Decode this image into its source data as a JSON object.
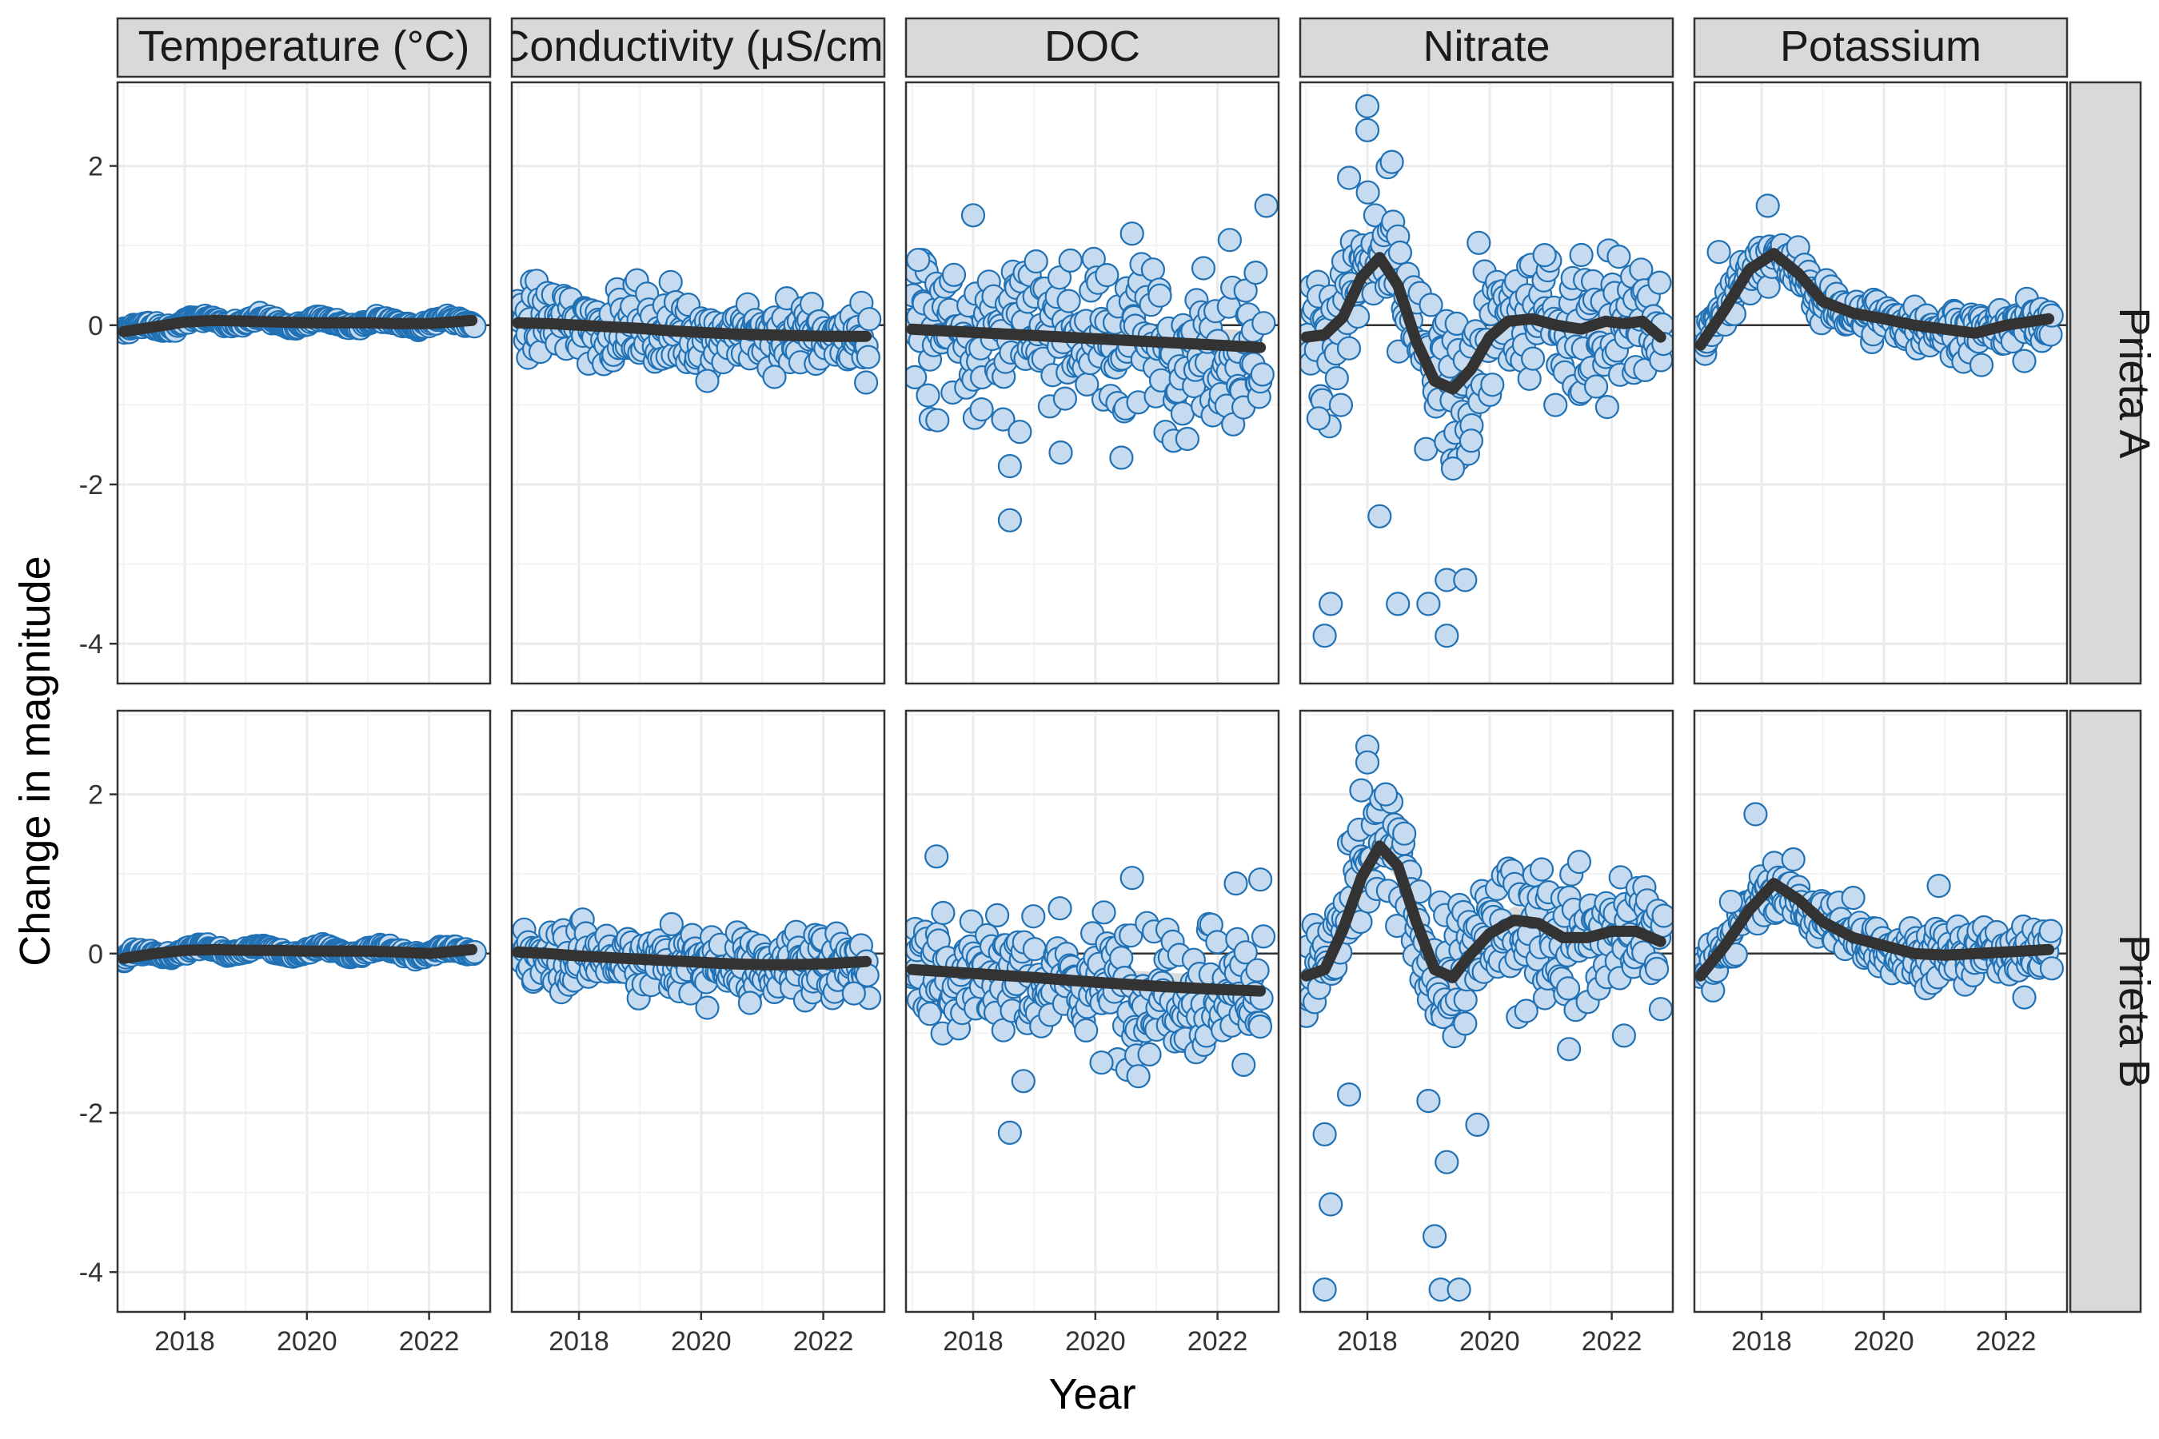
{
  "chart_data": {
    "type": "scatter",
    "subtype": "faceted scatter with smoothed trend lines",
    "xlabel": "Year",
    "ylabel": "Change in magnitude",
    "x_ticks": [
      2018,
      2020,
      2022
    ],
    "y_ticks": [
      -4,
      -2,
      0,
      2
    ],
    "xlim": [
      2016.9,
      2023.0
    ],
    "ylim": [
      -4.5,
      3.05
    ],
    "grid": true,
    "reference_line_y": 0,
    "point_fill": "#c6dbef",
    "point_stroke": "#2171b5",
    "trend_color": "#333333",
    "ribbon_color": "#bdbdbd",
    "columns": [
      "Temperature (°C)",
      "Conductivity (μS/cm)",
      "DOC",
      "Nitrate",
      "Potassium"
    ],
    "rows": [
      "Prieta A",
      "Prieta B"
    ],
    "panels": [
      {
        "row": "Prieta A",
        "column": "Temperature (°C)",
        "trend": [
          [
            2017.0,
            -0.08
          ],
          [
            2017.5,
            -0.02
          ],
          [
            2018.0,
            0.04
          ],
          [
            2018.5,
            0.06
          ],
          [
            2019.0,
            0.05
          ],
          [
            2019.5,
            0.04
          ],
          [
            2020.0,
            0.03
          ],
          [
            2020.5,
            0.03
          ],
          [
            2021.0,
            0.03
          ],
          [
            2021.5,
            0.02
          ],
          [
            2022.0,
            0.02
          ],
          [
            2022.7,
            0.06
          ]
        ],
        "scatter": {
          "spread": 0.06,
          "outliers": []
        }
      },
      {
        "row": "Prieta A",
        "column": "Conductivity (μS/cm)",
        "trend": [
          [
            2017.0,
            0.03
          ],
          [
            2017.5,
            0.02
          ],
          [
            2018.0,
            0.0
          ],
          [
            2018.5,
            -0.02
          ],
          [
            2019.0,
            -0.04
          ],
          [
            2019.5,
            -0.07
          ],
          [
            2020.0,
            -0.09
          ],
          [
            2020.5,
            -0.11
          ],
          [
            2021.0,
            -0.12
          ],
          [
            2021.5,
            -0.13
          ],
          [
            2022.0,
            -0.14
          ],
          [
            2022.7,
            -0.14
          ]
        ],
        "scatter": {
          "spread": 0.22,
          "outliers": [
            [
              2020.1,
              -0.7
            ],
            [
              2022.7,
              -0.72
            ],
            [
              2021.2,
              -0.65
            ]
          ]
        }
      },
      {
        "row": "Prieta A",
        "column": "DOC",
        "trend": [
          [
            2017.0,
            -0.05
          ],
          [
            2018.0,
            -0.09
          ],
          [
            2019.0,
            -0.13
          ],
          [
            2020.0,
            -0.17
          ],
          [
            2021.0,
            -0.21
          ],
          [
            2022.0,
            -0.25
          ],
          [
            2022.7,
            -0.28
          ]
        ],
        "scatter": {
          "spread": 0.5,
          "outliers": [
            [
              2018.0,
              1.38
            ],
            [
              2018.6,
              -1.77
            ],
            [
              2018.6,
              -2.45
            ],
            [
              2022.8,
              1.5
            ],
            [
              2020.6,
              1.15
            ],
            [
              2022.2,
              1.07
            ],
            [
              2017.1,
              0.82
            ]
          ]
        }
      },
      {
        "row": "Prieta A",
        "column": "Nitrate",
        "trend": [
          [
            2017.0,
            -0.15
          ],
          [
            2017.3,
            -0.12
          ],
          [
            2017.6,
            0.1
          ],
          [
            2017.9,
            0.6
          ],
          [
            2018.2,
            0.85
          ],
          [
            2018.5,
            0.5
          ],
          [
            2018.8,
            -0.2
          ],
          [
            2019.1,
            -0.7
          ],
          [
            2019.4,
            -0.8
          ],
          [
            2019.7,
            -0.55
          ],
          [
            2020.0,
            -0.15
          ],
          [
            2020.3,
            0.05
          ],
          [
            2020.7,
            0.08
          ],
          [
            2021.1,
            0.0
          ],
          [
            2021.5,
            -0.05
          ],
          [
            2021.9,
            0.05
          ],
          [
            2022.2,
            0.02
          ],
          [
            2022.5,
            0.05
          ],
          [
            2022.8,
            -0.15
          ]
        ],
        "scatter": {
          "spread": 0.45,
          "outliers": [
            [
              2018.0,
              2.75
            ],
            [
              2018.0,
              2.45
            ],
            [
              2018.4,
              2.05
            ],
            [
              2017.7,
              1.85
            ],
            [
              2017.3,
              -3.9
            ],
            [
              2017.4,
              -3.5
            ],
            [
              2018.2,
              -2.4
            ],
            [
              2018.5,
              -3.5
            ],
            [
              2019.0,
              -3.5
            ],
            [
              2019.3,
              -3.2
            ],
            [
              2019.6,
              -3.2
            ],
            [
              2019.3,
              -3.9
            ],
            [
              2019.7,
              -1.45
            ],
            [
              2019.4,
              -1.8
            ],
            [
              2017.2,
              -1.17
            ],
            [
              2020.9,
              0.88
            ]
          ]
        }
      },
      {
        "row": "Prieta A",
        "column": "Potassium",
        "trend": [
          [
            2017.0,
            -0.25
          ],
          [
            2017.4,
            0.2
          ],
          [
            2017.8,
            0.7
          ],
          [
            2018.2,
            0.9
          ],
          [
            2018.6,
            0.65
          ],
          [
            2019.0,
            0.3
          ],
          [
            2019.5,
            0.15
          ],
          [
            2020.0,
            0.08
          ],
          [
            2020.5,
            0.0
          ],
          [
            2021.0,
            -0.05
          ],
          [
            2021.5,
            -0.1
          ],
          [
            2022.0,
            0.0
          ],
          [
            2022.7,
            0.08
          ]
        ],
        "scatter": {
          "spread": 0.14,
          "outliers": [
            [
              2018.1,
              1.5
            ],
            [
              2017.3,
              0.92
            ],
            [
              2021.6,
              -0.5
            ],
            [
              2022.3,
              -0.45
            ]
          ]
        }
      },
      {
        "row": "Prieta B",
        "column": "Temperature (°C)",
        "trend": [
          [
            2017.0,
            -0.06
          ],
          [
            2017.5,
            0.0
          ],
          [
            2018.0,
            0.04
          ],
          [
            2018.5,
            0.05
          ],
          [
            2019.0,
            0.04
          ],
          [
            2019.5,
            0.04
          ],
          [
            2020.0,
            0.03
          ],
          [
            2020.5,
            0.03
          ],
          [
            2021.0,
            0.03
          ],
          [
            2021.5,
            0.02
          ],
          [
            2022.0,
            0.0
          ],
          [
            2022.7,
            0.05
          ]
        ],
        "scatter": {
          "spread": 0.06,
          "outliers": []
        }
      },
      {
        "row": "Prieta B",
        "column": "Conductivity (μS/cm)",
        "trend": [
          [
            2017.0,
            0.02
          ],
          [
            2017.5,
            0.0
          ],
          [
            2018.0,
            -0.03
          ],
          [
            2018.5,
            -0.05
          ],
          [
            2019.0,
            -0.07
          ],
          [
            2019.5,
            -0.09
          ],
          [
            2020.0,
            -0.11
          ],
          [
            2020.5,
            -0.13
          ],
          [
            2021.0,
            -0.14
          ],
          [
            2021.5,
            -0.14
          ],
          [
            2022.0,
            -0.13
          ],
          [
            2022.7,
            -0.1
          ]
        ],
        "scatter": {
          "spread": 0.2,
          "outliers": [
            [
              2020.1,
              -0.68
            ],
            [
              2020.8,
              -0.62
            ],
            [
              2022.5,
              -0.5
            ]
          ]
        }
      },
      {
        "row": "Prieta B",
        "column": "DOC",
        "trend": [
          [
            2017.0,
            -0.2
          ],
          [
            2018.0,
            -0.25
          ],
          [
            2019.0,
            -0.3
          ],
          [
            2020.0,
            -0.36
          ],
          [
            2021.0,
            -0.41
          ],
          [
            2022.0,
            -0.45
          ],
          [
            2022.7,
            -0.47
          ]
        ],
        "scatter": {
          "spread": 0.42,
          "outliers": [
            [
              2018.6,
              -2.25
            ],
            [
              2017.4,
              1.22
            ],
            [
              2020.6,
              0.95
            ],
            [
              2022.3,
              0.88
            ],
            [
              2022.7,
              0.93
            ],
            [
              2020.1,
              -1.37
            ]
          ]
        }
      },
      {
        "row": "Prieta B",
        "column": "Nitrate",
        "trend": [
          [
            2017.0,
            -0.28
          ],
          [
            2017.3,
            -0.2
          ],
          [
            2017.6,
            0.3
          ],
          [
            2017.9,
            0.95
          ],
          [
            2018.2,
            1.35
          ],
          [
            2018.5,
            1.1
          ],
          [
            2018.8,
            0.4
          ],
          [
            2019.1,
            -0.2
          ],
          [
            2019.4,
            -0.3
          ],
          [
            2019.7,
            0.0
          ],
          [
            2020.0,
            0.25
          ],
          [
            2020.4,
            0.42
          ],
          [
            2020.8,
            0.38
          ],
          [
            2021.2,
            0.2
          ],
          [
            2021.6,
            0.2
          ],
          [
            2022.0,
            0.28
          ],
          [
            2022.4,
            0.28
          ],
          [
            2022.8,
            0.15
          ]
        ],
        "scatter": {
          "spread": 0.4,
          "outliers": [
            [
              2018.0,
              2.6
            ],
            [
              2018.0,
              2.4
            ],
            [
              2017.9,
              2.05
            ],
            [
              2018.3,
              2.0
            ],
            [
              2017.3,
              -2.27
            ],
            [
              2017.4,
              -3.15
            ],
            [
              2017.3,
              -4.22
            ],
            [
              2017.7,
              -1.77
            ],
            [
              2019.0,
              -1.85
            ],
            [
              2019.1,
              -3.55
            ],
            [
              2019.3,
              -2.62
            ],
            [
              2019.2,
              -4.22
            ],
            [
              2019.5,
              -4.22
            ],
            [
              2019.8,
              -2.15
            ],
            [
              2019.6,
              -0.88
            ],
            [
              2021.3,
              -1.2
            ],
            [
              2022.2,
              -1.03
            ],
            [
              2020.6,
              -0.72
            ]
          ]
        }
      },
      {
        "row": "Prieta B",
        "column": "Potassium",
        "trend": [
          [
            2017.0,
            -0.28
          ],
          [
            2017.4,
            0.1
          ],
          [
            2017.8,
            0.55
          ],
          [
            2018.2,
            0.88
          ],
          [
            2018.6,
            0.68
          ],
          [
            2019.0,
            0.4
          ],
          [
            2019.5,
            0.2
          ],
          [
            2020.0,
            0.1
          ],
          [
            2020.5,
            0.0
          ],
          [
            2021.0,
            -0.02
          ],
          [
            2021.5,
            0.0
          ],
          [
            2022.0,
            0.02
          ],
          [
            2022.7,
            0.05
          ]
        ],
        "scatter": {
          "spread": 0.16,
          "outliers": [
            [
              2017.9,
              1.75
            ],
            [
              2017.5,
              0.65
            ],
            [
              2020.9,
              0.85
            ],
            [
              2022.3,
              -0.55
            ],
            [
              2019.5,
              0.7
            ]
          ]
        }
      }
    ]
  }
}
